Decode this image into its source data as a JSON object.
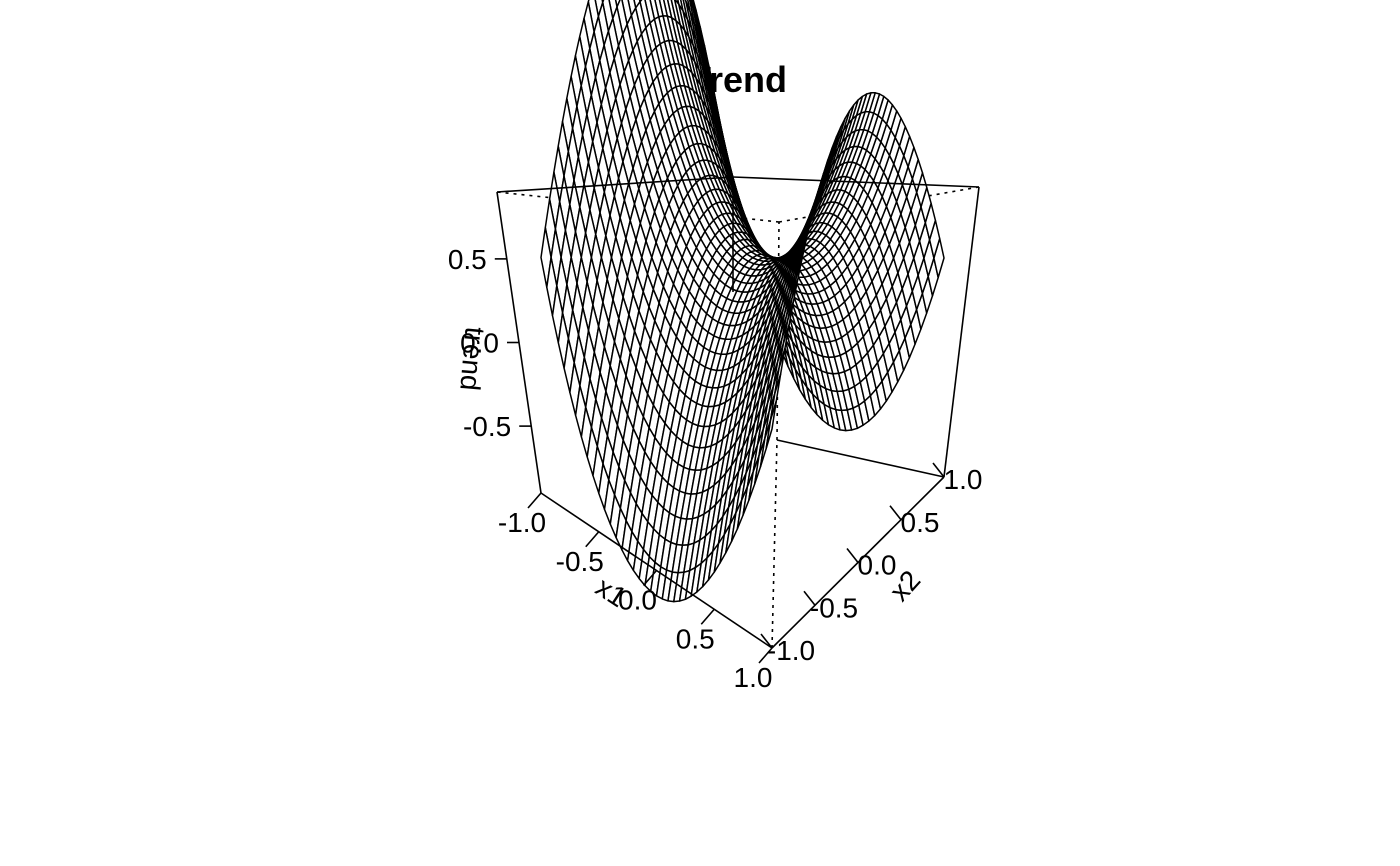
{
  "chart_data": {
    "type": "surface",
    "title": "Trend",
    "xlabel": "x1",
    "ylabel": "x2",
    "zlabel": "trend",
    "xlim": [
      -1.0,
      1.0
    ],
    "ylim": [
      -1.0,
      1.0
    ],
    "zlim": [
      -0.9,
      0.9
    ],
    "x_ticks": [
      "-1.0",
      "-0.5",
      "0.0",
      "0.5",
      "1.0"
    ],
    "y_ticks": [
      "-1.0",
      "-0.5",
      "0.0",
      "0.5",
      "1.0"
    ],
    "z_ticks": [
      "-0.5",
      "0.0",
      "0.5"
    ],
    "function": "x1^2 - x2^2",
    "grid_points": 40,
    "surface_color": "#ffffff",
    "line_color": "#000000"
  }
}
